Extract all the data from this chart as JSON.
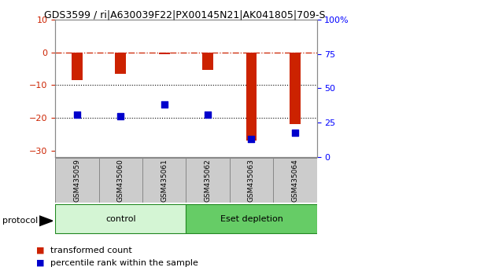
{
  "title": "GDS3599 / ri|A630039F22|PX00145N21|AK041805|709-S",
  "samples": [
    "GSM435059",
    "GSM435060",
    "GSM435061",
    "GSM435062",
    "GSM435063",
    "GSM435064"
  ],
  "red_values": [
    -8.5,
    -6.5,
    -0.5,
    -5.5,
    -27.0,
    -22.0
  ],
  "blue_values": [
    -19.0,
    -19.5,
    -16.0,
    -19.0,
    -26.5,
    -24.5
  ],
  "ylim_left": [
    -32,
    10
  ],
  "ylim_right": [
    0,
    100
  ],
  "yticks_left": [
    10,
    0,
    -10,
    -20,
    -30
  ],
  "yticks_right": [
    0,
    25,
    50,
    75,
    100
  ],
  "ytick_labels_right": [
    "0",
    "25",
    "50",
    "75",
    "100%"
  ],
  "dotted_lines": [
    -10,
    -20
  ],
  "protocol_groups": [
    {
      "label": "control",
      "start": 0,
      "end": 2,
      "color": "#d4f5d4"
    },
    {
      "label": "Eset depletion",
      "start": 3,
      "end": 5,
      "color": "#66cc66"
    }
  ],
  "legend_red_label": "transformed count",
  "legend_blue_label": "percentile rank within the sample",
  "red_color": "#cc2200",
  "blue_color": "#0000cc",
  "bar_width": 0.25,
  "dot_size": 30,
  "background_color": "#ffffff",
  "plot_bg_color": "#ffffff",
  "tick_box_color": "#cccccc",
  "tick_box_border": "#888888"
}
